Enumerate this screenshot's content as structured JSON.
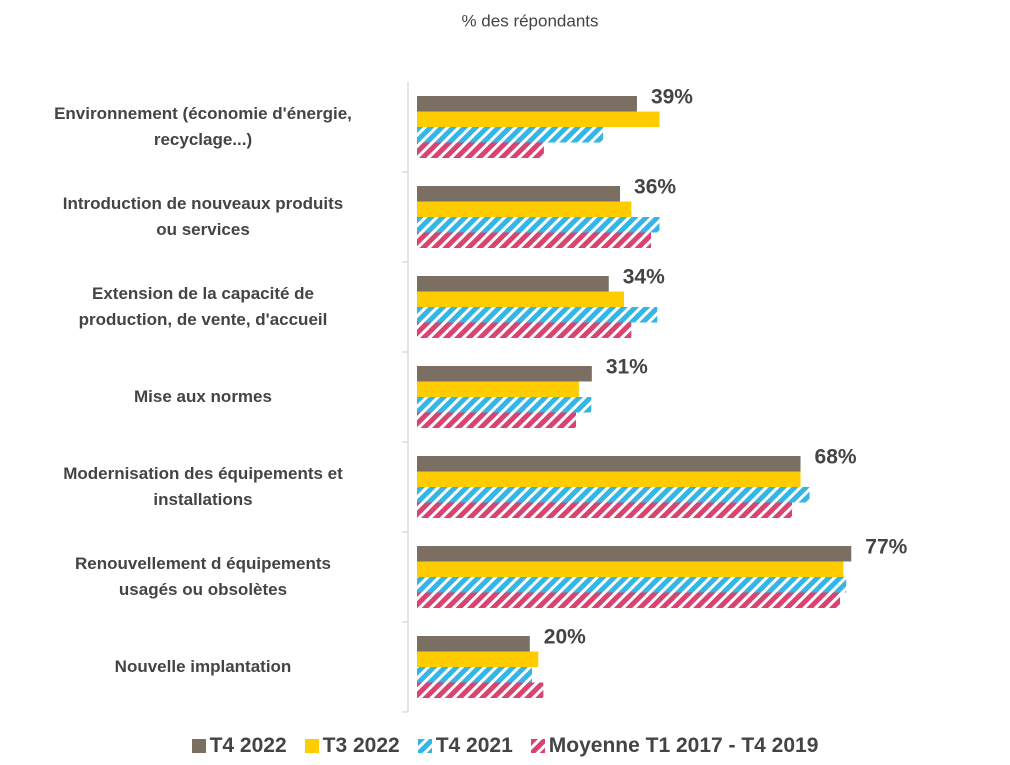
{
  "chart_data": {
    "type": "hbar",
    "subtitle": "% des répondants",
    "categories": [
      "Environnement (économie d'énergie,\nrecyclage...)",
      "Introduction de nouveaux produits\nou services",
      "Extension de la capacité de\nproduction, de vente, d'accueil",
      "Mise aux normes",
      "Modernisation des équipements et\ninstallations",
      "Renouvellement d équipements\nusagés ou obsolètes",
      "Nouvelle implantation"
    ],
    "xlim": [
      0,
      100
    ],
    "series": [
      {
        "name": "T4 2022",
        "color": "#7b6f63",
        "pattern": "solid",
        "values": [
          39,
          36,
          34,
          31,
          68,
          77,
          20
        ],
        "value_labels": [
          "39%",
          "36%",
          "34%",
          "31%",
          "68%",
          "77%",
          "20%"
        ]
      },
      {
        "name": "T3 2022",
        "color": "#ffcc00",
        "pattern": "solid",
        "values": [
          43,
          38,
          36.7,
          28.7,
          68,
          75.6,
          21.5
        ]
      },
      {
        "name": "T4 2021",
        "color": "#33b5e5",
        "pattern": "hatch",
        "values": [
          33,
          43,
          42.6,
          30.9,
          69.6,
          76.1,
          20.4
        ]
      },
      {
        "name": "Moyenne T1 2017 - T4 2019",
        "color": "#d9436f",
        "pattern": "hatch",
        "values": [
          22.5,
          41.5,
          38,
          28.2,
          66.5,
          75,
          22.4
        ]
      }
    ]
  }
}
